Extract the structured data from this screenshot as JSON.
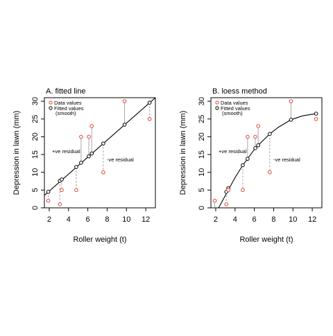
{
  "colors": {
    "data_point": "#e0443c",
    "fitted_point": "#000000",
    "fit_line": "#000000",
    "residual_positive": "#a8a8a8",
    "residual_negative": "#a8a8a8"
  },
  "chart_data": [
    {
      "type": "scatter",
      "title": "A. fitted line",
      "xlabel": "Roller weight (t)",
      "ylabel": "Depression in lawn (mm)",
      "xlim": [
        1.5,
        13.0
      ],
      "ylim": [
        0,
        31
      ],
      "xticks": [
        2,
        4,
        6,
        8,
        10,
        12
      ],
      "yticks": [
        0,
        5,
        10,
        15,
        20,
        25,
        30
      ],
      "grid": false,
      "legend_position": "top-left",
      "legend": {
        "data_label": "Data values",
        "fitted_label_line1": "Fitted values",
        "fitted_label_line2": "(smooth)"
      },
      "annotations": {
        "positive": "+ve residual",
        "negative": "-ve residual"
      },
      "x": [
        1.9,
        3.1,
        3.3,
        4.8,
        5.3,
        6.1,
        6.4,
        7.6,
        9.8,
        12.4
      ],
      "data_values": [
        2,
        1,
        5,
        5,
        20,
        20,
        23,
        10,
        30,
        25
      ],
      "fitted_values": [
        4.5,
        7.6,
        8.0,
        11.5,
        12.7,
        14.5,
        15.3,
        18.1,
        23.4,
        29.6
      ],
      "fit_curve": {
        "x": [
          1.5,
          13.0
        ],
        "y": [
          3.5,
          31.0
        ]
      }
    },
    {
      "type": "scatter",
      "title": "B. loess method",
      "xlabel": "Roller weight (t)",
      "ylabel": "Depression in lawn (mm)",
      "xlim": [
        1.5,
        13.0
      ],
      "ylim": [
        0,
        31
      ],
      "xticks": [
        2,
        4,
        6,
        8,
        10,
        12
      ],
      "yticks": [
        0,
        5,
        10,
        15,
        20,
        25,
        30
      ],
      "grid": false,
      "legend_position": "top-left",
      "legend": {
        "data_label": "Data values",
        "fitted_label_line1": "Fitted values",
        "fitted_label_line2": "(smooth)"
      },
      "annotations": {
        "positive": "+ve residual",
        "negative": "-ve residual"
      },
      "x": [
        1.9,
        3.1,
        3.3,
        4.8,
        5.3,
        6.1,
        6.4,
        7.6,
        9.8,
        12.4
      ],
      "data_values": [
        2,
        1,
        5,
        5,
        20,
        20,
        23,
        10,
        30,
        25
      ],
      "fitted_values": [
        -0.5,
        4.5,
        5.5,
        12.0,
        13.8,
        16.8,
        17.6,
        20.8,
        24.8,
        26.5
      ],
      "fit_curve": {
        "x": [
          2.3,
          3.0,
          3.5,
          4.0,
          4.8,
          5.3,
          6.1,
          6.4,
          7.0,
          7.6,
          8.5,
          9.8,
          11.0,
          12.4
        ],
        "y": [
          0,
          3.5,
          6.0,
          8.5,
          12.0,
          13.8,
          16.8,
          17.6,
          19.2,
          20.8,
          22.7,
          24.8,
          25.9,
          26.5
        ]
      }
    }
  ]
}
